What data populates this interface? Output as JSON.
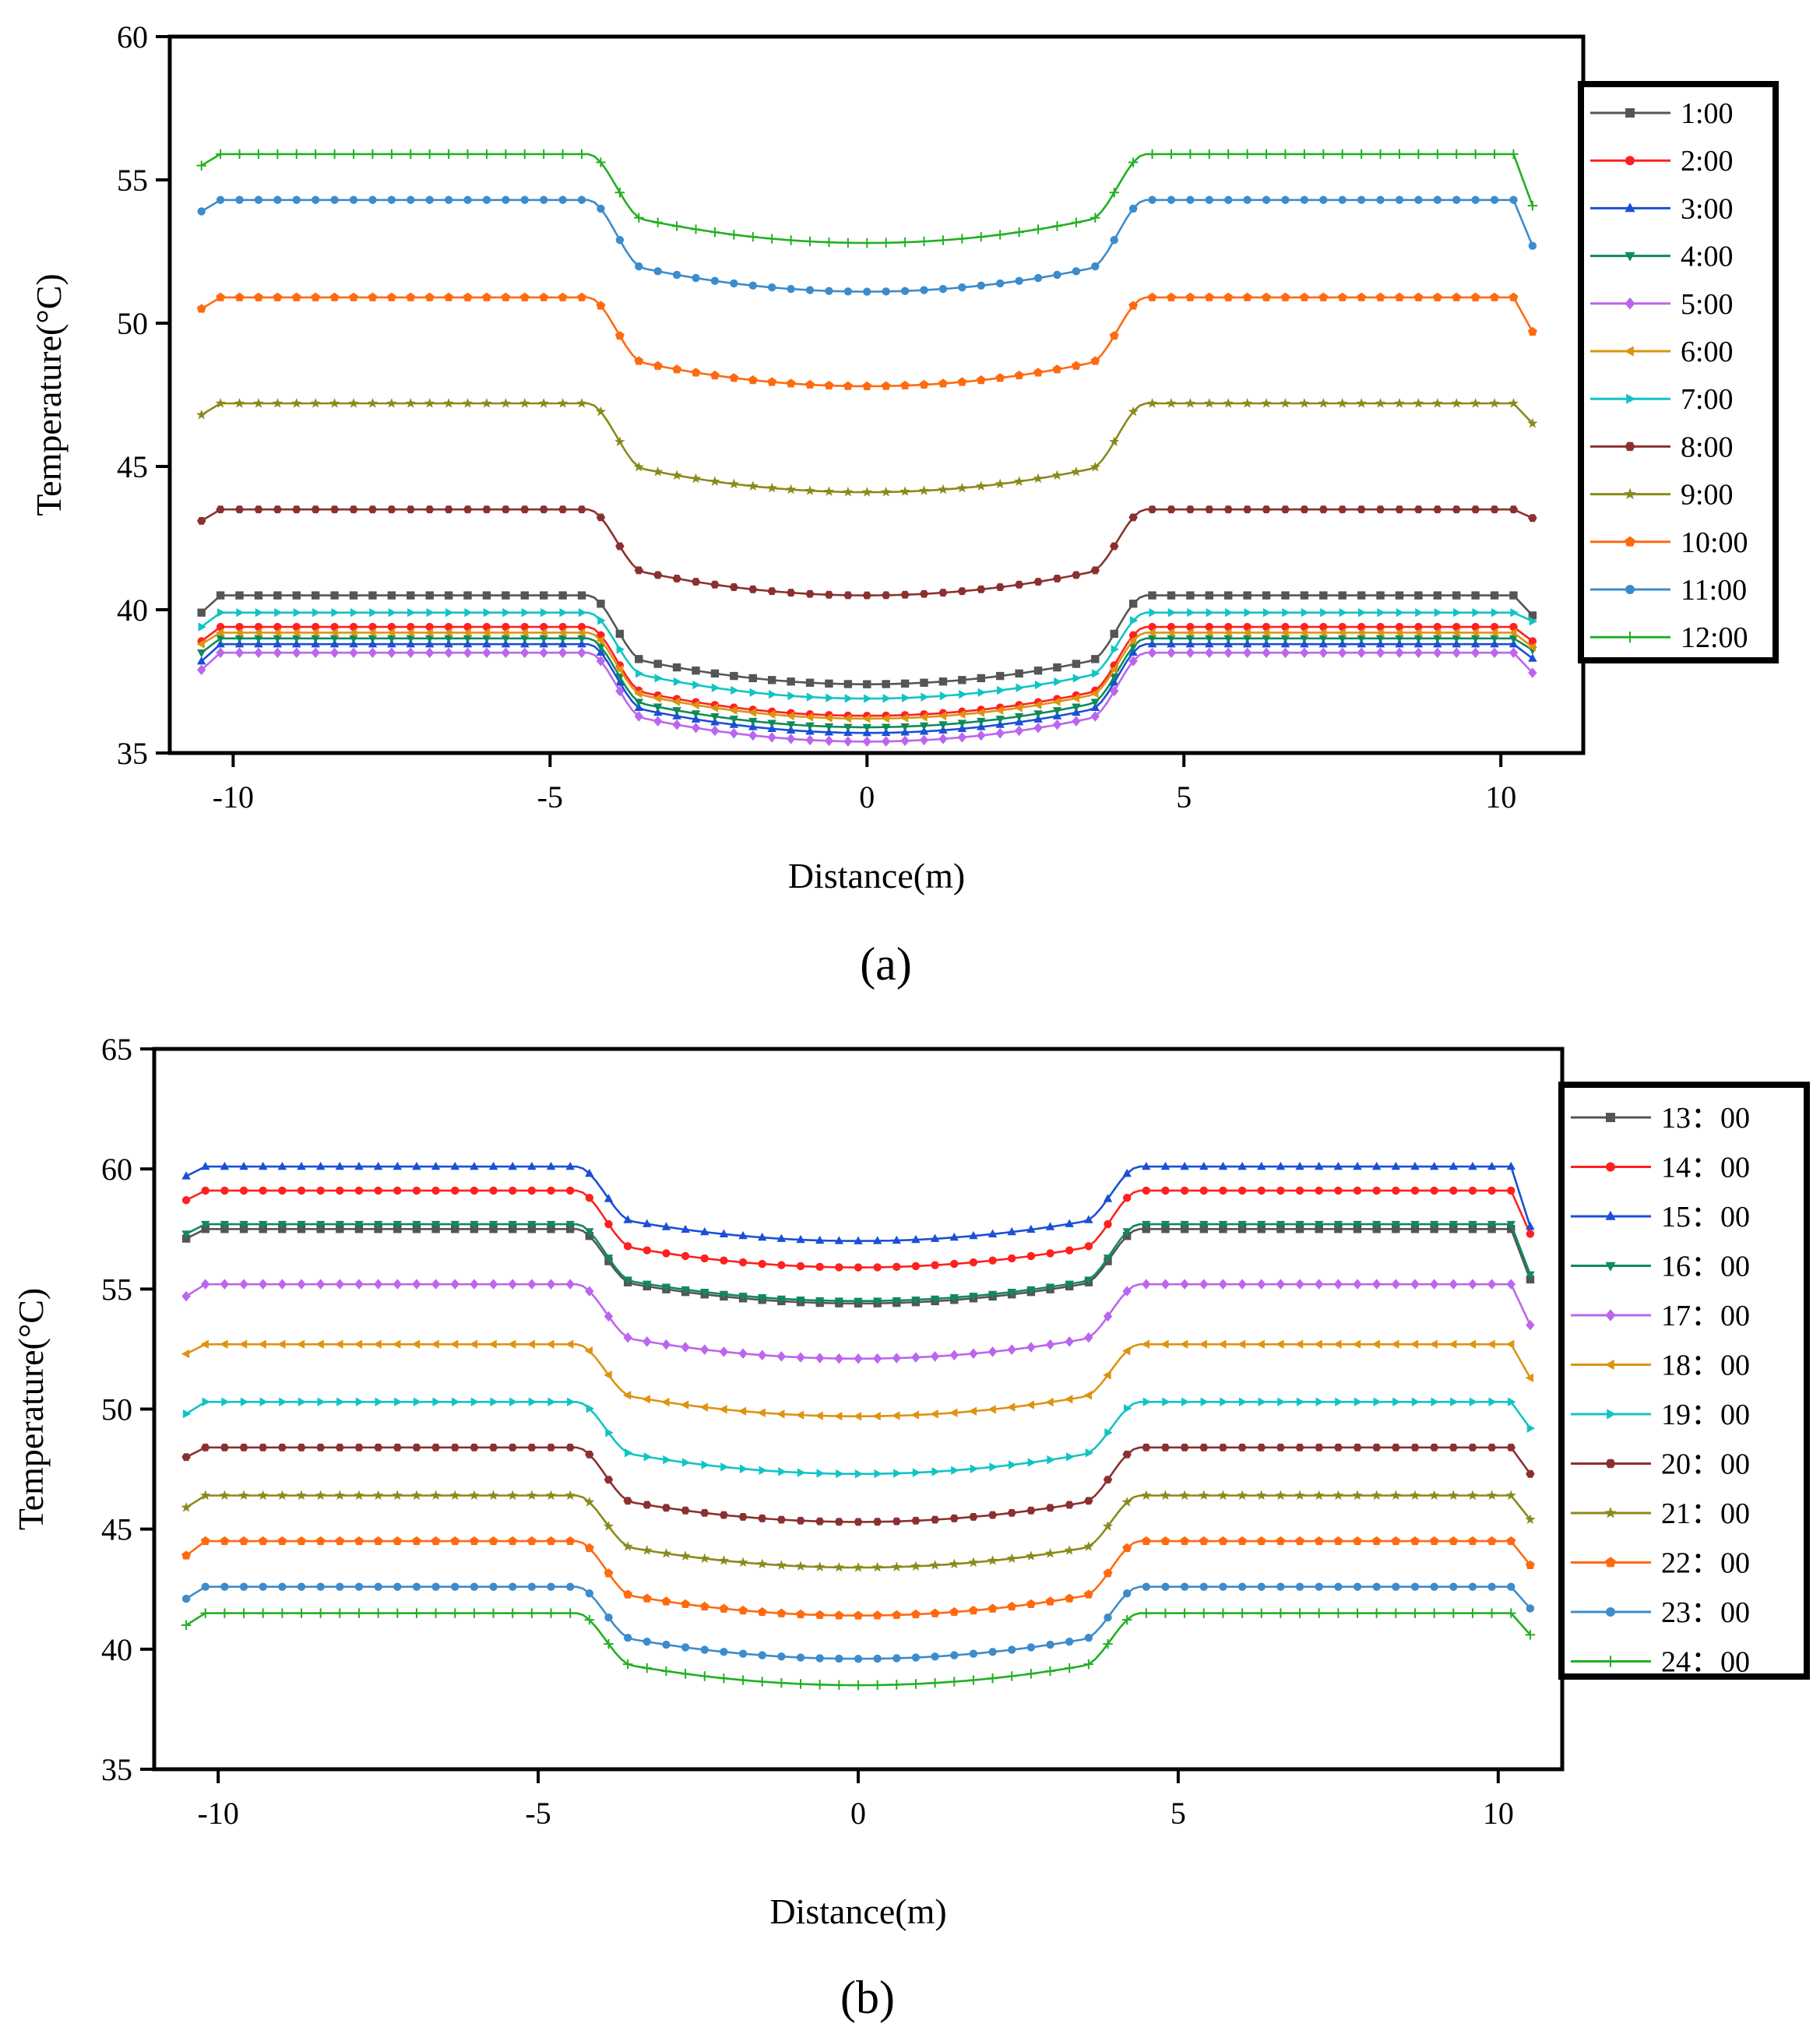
{
  "chart_data": [
    {
      "type": "line",
      "panel": "a",
      "caption": "(a)",
      "xlabel": "Distance(m)",
      "ylabel": "Temperature(°C)",
      "xlim": [
        -11,
        11.3
      ],
      "ylim": [
        35,
        60
      ],
      "xticks": [
        -10,
        -5,
        0,
        5,
        10
      ],
      "yticks": [
        35,
        40,
        45,
        50,
        55,
        60
      ],
      "profile_x": [
        -10.5,
        -10.2,
        -9.8,
        -5,
        -4.6,
        -4.3,
        -4.0,
        -3.5,
        -3.0,
        -2.0,
        -1.0,
        0,
        1.0,
        2.0,
        3.0,
        3.5,
        4.0,
        4.3,
        4.6,
        5,
        9.8,
        10.2,
        10.5
      ],
      "legend_position": "right-outside",
      "series": [
        {
          "name": "1:00",
          "color": "#555555",
          "marker": "square",
          "plateau": 40.5,
          "valley": 37.4,
          "start": 39.9,
          "end": 39.8
        },
        {
          "name": "2:00",
          "color": "#ff2020",
          "marker": "circle",
          "plateau": 39.4,
          "valley": 36.3,
          "start": 38.9,
          "end": 38.9
        },
        {
          "name": "3:00",
          "color": "#1a4fd6",
          "marker": "triangle-up",
          "plateau": 38.8,
          "valley": 35.7,
          "start": 38.2,
          "end": 38.3
        },
        {
          "name": "4:00",
          "color": "#108a5a",
          "marker": "triangle-down",
          "plateau": 39.0,
          "valley": 35.9,
          "start": 38.5,
          "end": 38.6
        },
        {
          "name": "5:00",
          "color": "#bb66ee",
          "marker": "diamond",
          "plateau": 38.5,
          "valley": 35.4,
          "start": 37.9,
          "end": 37.8
        },
        {
          "name": "6:00",
          "color": "#dd9411",
          "marker": "triangle-left",
          "plateau": 39.2,
          "valley": 36.2,
          "start": 38.8,
          "end": 38.7
        },
        {
          "name": "7:00",
          "color": "#11c4c4",
          "marker": "triangle-right",
          "plateau": 39.9,
          "valley": 36.9,
          "start": 39.4,
          "end": 39.6
        },
        {
          "name": "8:00",
          "color": "#8b3030",
          "marker": "hexagon",
          "plateau": 43.5,
          "valley": 40.5,
          "start": 43.1,
          "end": 43.2
        },
        {
          "name": "9:00",
          "color": "#8a8a1c",
          "marker": "star",
          "plateau": 47.2,
          "valley": 44.1,
          "start": 46.8,
          "end": 46.5
        },
        {
          "name": "10:00",
          "color": "#ff6a10",
          "marker": "pentagon",
          "plateau": 50.9,
          "valley": 47.8,
          "start": 50.5,
          "end": 49.7
        },
        {
          "name": "11:00",
          "color": "#3c8ccc",
          "marker": "circle",
          "plateau": 54.3,
          "valley": 51.1,
          "start": 53.9,
          "end": 52.7
        },
        {
          "name": "12:00",
          "color": "#22b022",
          "marker": "plus",
          "plateau": 55.9,
          "valley": 52.8,
          "start": 55.5,
          "end": 54.1
        }
      ]
    },
    {
      "type": "line",
      "panel": "b",
      "caption": "(b)",
      "xlabel": "Distance(m)",
      "ylabel": "Temperature(°C)",
      "xlim": [
        -11,
        11
      ],
      "ylim": [
        35,
        65
      ],
      "xticks": [
        -10,
        -5,
        0,
        5,
        10
      ],
      "yticks": [
        35,
        40,
        45,
        50,
        55,
        60,
        65
      ],
      "profile_x": [
        -10.5,
        -10.2,
        -9.8,
        -5,
        -4.6,
        -4.3,
        -4.0,
        -3.5,
        -3.0,
        -2.0,
        -1.0,
        0,
        1.0,
        2.0,
        3.0,
        3.5,
        4.0,
        4.3,
        4.6,
        5,
        9.8,
        10.2,
        10.5
      ],
      "legend_position": "right-outside",
      "series": [
        {
          "name": "13：00",
          "color": "#555555",
          "marker": "square",
          "plateau": 57.5,
          "valley": 54.4,
          "start": 57.1,
          "end": 55.4
        },
        {
          "name": "14：00",
          "color": "#ff2020",
          "marker": "circle",
          "plateau": 59.1,
          "valley": 55.9,
          "start": 58.7,
          "end": 57.3
        },
        {
          "name": "15：00",
          "color": "#1a4fd6",
          "marker": "triangle-up",
          "plateau": 60.1,
          "valley": 57.0,
          "start": 59.7,
          "end": 57.6
        },
        {
          "name": "16：00",
          "color": "#108a5a",
          "marker": "triangle-down",
          "plateau": 57.7,
          "valley": 54.5,
          "start": 57.3,
          "end": 55.6
        },
        {
          "name": "17：00",
          "color": "#bb66ee",
          "marker": "diamond",
          "plateau": 55.2,
          "valley": 52.1,
          "start": 54.7,
          "end": 53.5
        },
        {
          "name": "18：00",
          "color": "#dd9411",
          "marker": "triangle-left",
          "plateau": 52.7,
          "valley": 49.7,
          "start": 52.3,
          "end": 51.3
        },
        {
          "name": "19：00",
          "color": "#11c4c4",
          "marker": "triangle-right",
          "plateau": 50.3,
          "valley": 47.3,
          "start": 49.8,
          "end": 49.2
        },
        {
          "name": "20：00",
          "color": "#8b3030",
          "marker": "hexagon",
          "plateau": 48.4,
          "valley": 45.3,
          "start": 48.0,
          "end": 47.3
        },
        {
          "name": "21：00",
          "color": "#8a8a1c",
          "marker": "star",
          "plateau": 46.4,
          "valley": 43.4,
          "start": 45.9,
          "end": 45.4
        },
        {
          "name": "22：00",
          "color": "#ff6a10",
          "marker": "pentagon",
          "plateau": 44.5,
          "valley": 41.4,
          "start": 43.9,
          "end": 43.5
        },
        {
          "name": "23：00",
          "color": "#3c8ccc",
          "marker": "circle",
          "plateau": 42.6,
          "valley": 39.6,
          "start": 42.1,
          "end": 41.7
        },
        {
          "name": "24：00",
          "color": "#22b022",
          "marker": "plus",
          "plateau": 41.5,
          "valley": 38.5,
          "start": 41.0,
          "end": 40.6
        }
      ]
    }
  ]
}
